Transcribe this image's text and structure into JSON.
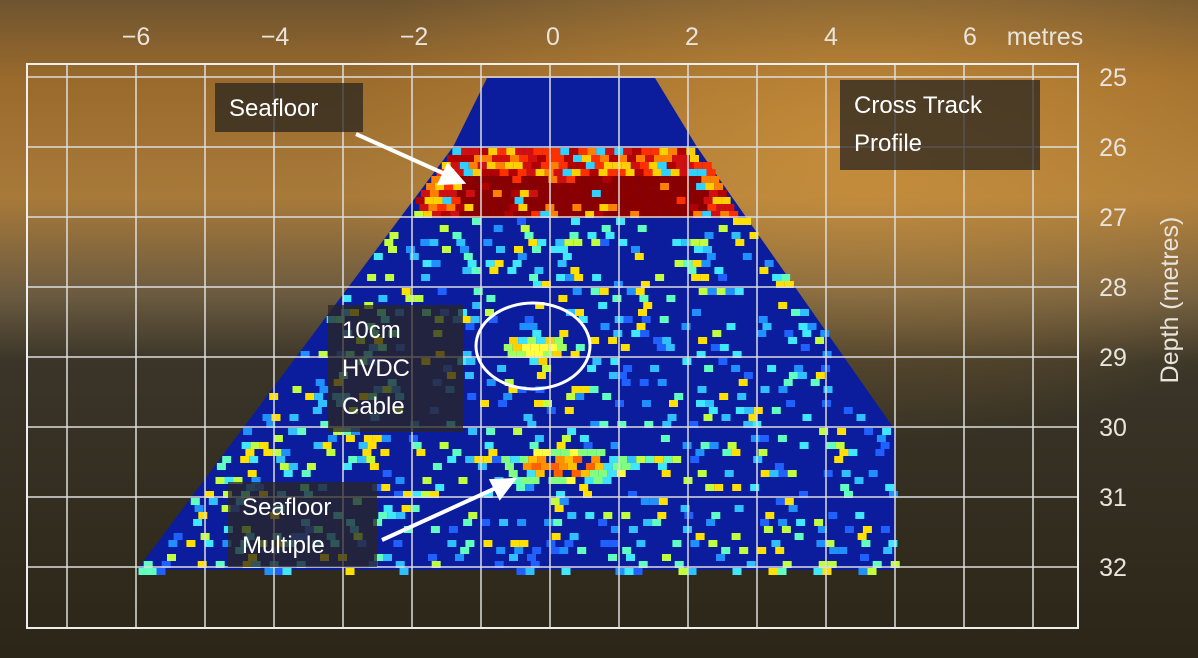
{
  "x_axis": {
    "label": "metres",
    "ticks": [
      "−6",
      "−4",
      "−2",
      "0",
      "2",
      "4",
      "6"
    ]
  },
  "y_axis": {
    "label": "Depth (metres)",
    "ticks": [
      "25",
      "26",
      "27",
      "28",
      "29",
      "30",
      "31",
      "32"
    ]
  },
  "annotations": [
    {
      "lines": [
        "Seafloor"
      ]
    },
    {
      "lines": [
        "Cross Track",
        "Profile"
      ]
    },
    {
      "lines": [
        "10cm",
        "HVDC",
        "Cable"
      ]
    },
    {
      "lines": [
        "Seafloor",
        "Multiple"
      ]
    }
  ]
}
